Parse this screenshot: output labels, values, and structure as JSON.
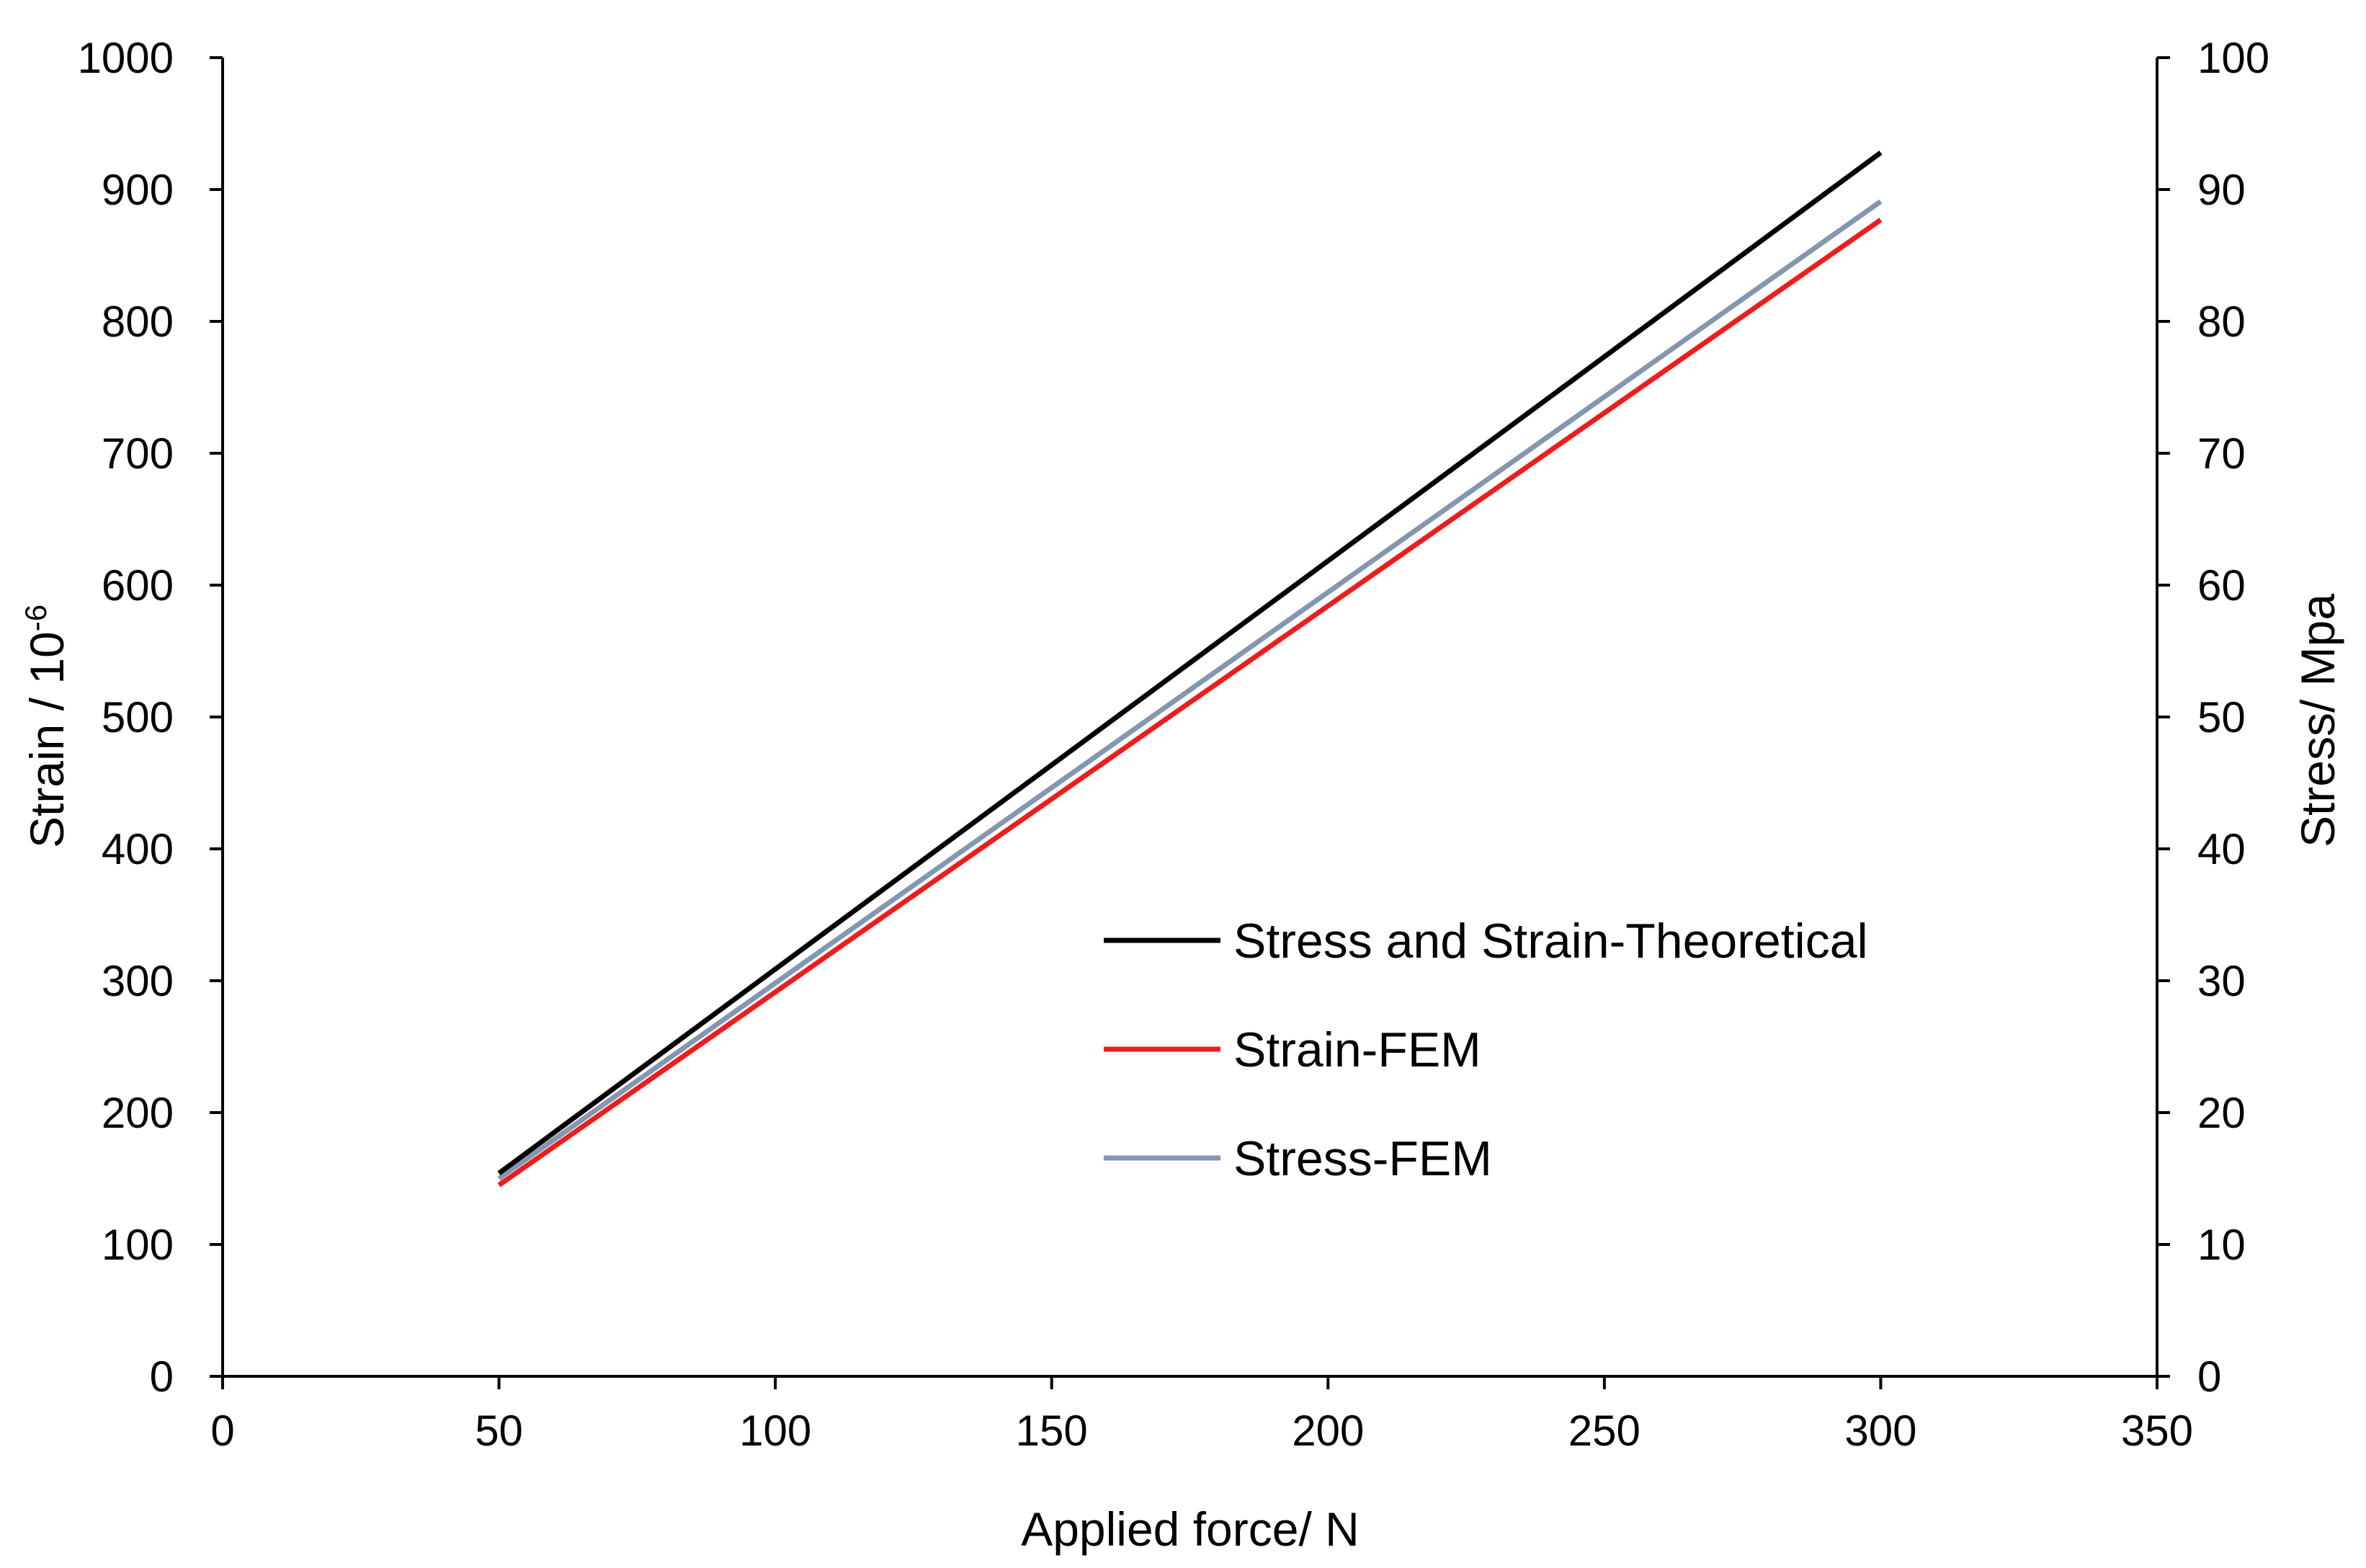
{
  "chart_data": {
    "type": "line",
    "xlabel": "Applied force/ N",
    "ylabel_left": "Strain / 10",
    "ylabel_left_sup": "-6",
    "ylabel_right": "Stress/ Mpa",
    "xlim": [
      0,
      350
    ],
    "ylim_left": [
      0,
      1000
    ],
    "ylim_right": [
      0,
      100
    ],
    "x_ticks": [
      0,
      50,
      100,
      150,
      200,
      250,
      300,
      350
    ],
    "y_ticks_left": [
      0,
      100,
      200,
      300,
      400,
      500,
      600,
      700,
      800,
      900,
      1000
    ],
    "y_ticks_right": [
      0,
      10,
      20,
      30,
      40,
      50,
      60,
      70,
      80,
      90,
      100
    ],
    "grid": false,
    "legend_position": "center-right",
    "series": [
      {
        "name": "Stress and Strain-Theoretical",
        "color": "#000000",
        "axis": "left",
        "x": [
          50,
          300
        ],
        "y": [
          154,
          928
        ]
      },
      {
        "name": "Strain-FEM",
        "color": "#ee1c1c",
        "axis": "left",
        "x": [
          50,
          300
        ],
        "y": [
          145,
          877
        ]
      },
      {
        "name": "Stress-FEM",
        "color": "#8496b0",
        "axis": "right",
        "x": [
          50,
          300
        ],
        "y": [
          15,
          89.1
        ]
      }
    ]
  }
}
